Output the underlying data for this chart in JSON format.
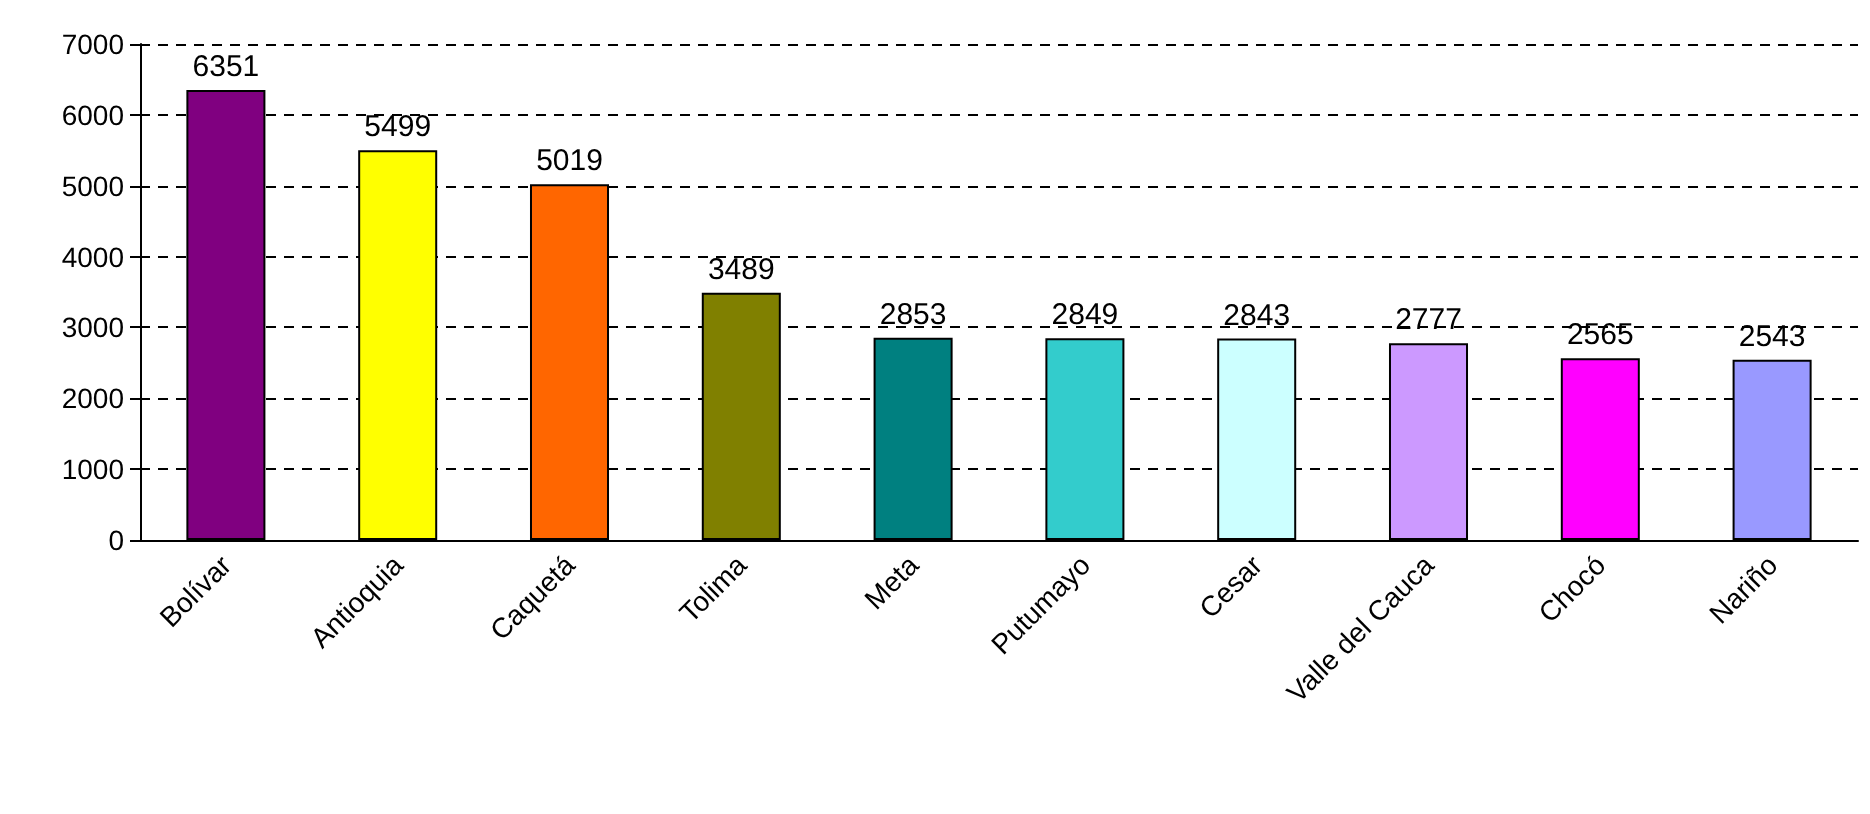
{
  "chart_data": {
    "type": "bar",
    "categories": [
      "Bolívar",
      "Antioquia",
      "Caquetá",
      "Tolima",
      "Meta",
      "Putumayo",
      "Cesar",
      "Valle del Cauca",
      "Chocó",
      "Nariño"
    ],
    "values": [
      6351,
      5499,
      5019,
      3489,
      2853,
      2849,
      2843,
      2777,
      2565,
      2543
    ],
    "colors": [
      "#800080",
      "#ffff00",
      "#ff6600",
      "#808000",
      "#008080",
      "#33cccc",
      "#ccffff",
      "#cc99ff",
      "#ff00ff",
      "#9999ff"
    ],
    "ylim": [
      0,
      7000
    ],
    "yticks": [
      0,
      1000,
      2000,
      3000,
      4000,
      5000,
      6000,
      7000
    ],
    "grid": "y",
    "data_labels": true
  }
}
